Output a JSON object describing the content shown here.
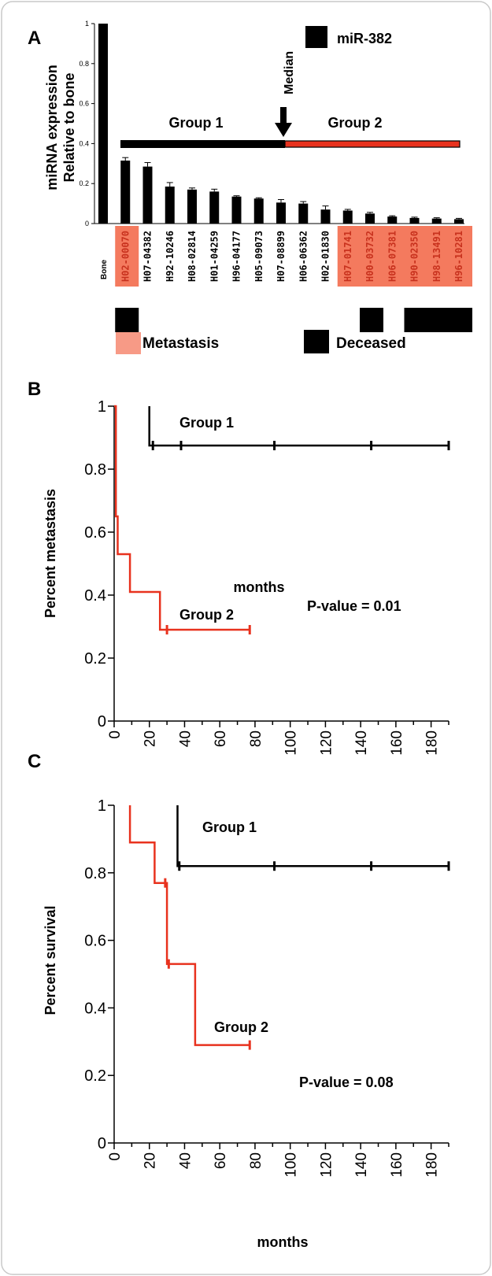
{
  "chart_data": [
    {
      "panel": "A",
      "type": "bar",
      "ylabel_line1": "miRNA expression",
      "ylabel_line2": "Relative to bone",
      "ylim": [
        0,
        1
      ],
      "yticks": [
        "0",
        "0.2",
        "0.4",
        "0.6",
        "0.8",
        "1"
      ],
      "categories": [
        "Bone",
        "H02-00070",
        "H07-04382",
        "H92-10246",
        "H08-02814",
        "H01-04259",
        "H96-04177",
        "H05-09073",
        "H07-08899",
        "H06-06362",
        "H02-01830",
        "H07-01741",
        "H00-03732",
        "H06-07381",
        "H90-02350",
        "H98-13491",
        "H96-10281"
      ],
      "series": [
        {
          "name": "miR-382",
          "values": [
            1.0,
            0.315,
            0.285,
            0.185,
            0.17,
            0.16,
            0.135,
            0.125,
            0.105,
            0.1,
            0.07,
            0.065,
            0.05,
            0.035,
            0.028,
            0.025,
            0.022
          ],
          "errors": [
            0,
            0.015,
            0.02,
            0.02,
            0.008,
            0.012,
            0.004,
            0.004,
            0.015,
            0.01,
            0.018,
            0.006,
            0.006,
            0.004,
            0.004,
            0.004,
            0.004
          ]
        }
      ],
      "metastasis": [
        false,
        true,
        false,
        false,
        false,
        false,
        false,
        false,
        false,
        false,
        false,
        true,
        true,
        true,
        true,
        true,
        true
      ],
      "deceased": [
        false,
        true,
        false,
        false,
        false,
        false,
        false,
        false,
        false,
        false,
        false,
        false,
        true,
        false,
        true,
        true,
        true
      ],
      "group_bar_value": 0.4,
      "group1_label": "Group 1",
      "group2_label": "Group 2",
      "median_label": "Median",
      "legend_metastasis": "Metastasis",
      "legend_deceased": "Deceased",
      "colors": {
        "bar": "#000000",
        "group2": "#e8321e",
        "metastasis_box": "#f47a5e",
        "metastasis_text": "#c8321e",
        "legend_metastasis": "#f79a86"
      }
    },
    {
      "panel": "B",
      "type": "line",
      "step": true,
      "ylabel": "Percent metastasis",
      "xlabel": "months",
      "xlim": [
        0,
        190
      ],
      "ylim": [
        0,
        1
      ],
      "xticks": [
        "0",
        "20",
        "40",
        "60",
        "80",
        "100",
        "120",
        "140",
        "160",
        "180"
      ],
      "yticks": [
        "0",
        "0.2",
        "0.4",
        "0.6",
        "0.8",
        "1"
      ],
      "series": [
        {
          "name": "Group 1",
          "color": "#000000",
          "points": [
            [
              20,
              1
            ],
            [
              20,
              0.875
            ],
            [
              190,
              0.875
            ]
          ],
          "censored": [
            22,
            38,
            91,
            146,
            190
          ]
        },
        {
          "name": "Group 2",
          "color": "#e8321e",
          "points": [
            [
              0,
              1
            ],
            [
              1,
              1
            ],
            [
              1,
              0.65
            ],
            [
              2,
              0.65
            ],
            [
              2,
              0.53
            ],
            [
              9,
              0.53
            ],
            [
              9,
              0.41
            ],
            [
              26,
              0.41
            ],
            [
              26,
              0.29
            ],
            [
              77,
              0.29
            ]
          ],
          "censored": [
            30,
            77
          ]
        }
      ],
      "annotation": "P-value = 0.01"
    },
    {
      "panel": "C",
      "type": "line",
      "step": true,
      "ylabel": "Percent survival",
      "xlabel": "months",
      "xlim": [
        0,
        190
      ],
      "ylim": [
        0,
        1
      ],
      "xticks": [
        "0",
        "20",
        "40",
        "60",
        "80",
        "100",
        "120",
        "140",
        "160",
        "180"
      ],
      "yticks": [
        "0",
        "0.2",
        "0.4",
        "0.6",
        "0.8",
        "1"
      ],
      "series": [
        {
          "name": "Group 1",
          "color": "#000000",
          "points": [
            [
              36,
              1
            ],
            [
              36,
              0.82
            ],
            [
              190,
              0.82
            ]
          ],
          "censored": [
            37,
            91,
            146,
            190
          ]
        },
        {
          "name": "Group 2",
          "color": "#e8321e",
          "points": [
            [
              9,
              1
            ],
            [
              9,
              0.89
            ],
            [
              23,
              0.89
            ],
            [
              23,
              0.77
            ],
            [
              30,
              0.77
            ],
            [
              30,
              0.53
            ],
            [
              46,
              0.53
            ],
            [
              46,
              0.29
            ],
            [
              77,
              0.29
            ]
          ],
          "censored": [
            29,
            31,
            77
          ]
        }
      ],
      "annotation": "P-value = 0.08"
    }
  ],
  "panel_labels": [
    "A",
    "B",
    "C"
  ]
}
